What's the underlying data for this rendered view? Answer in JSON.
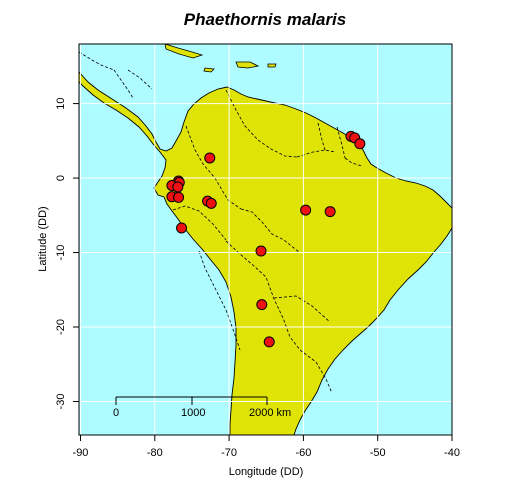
{
  "title": "Phaethornis malaris",
  "chart_data": {
    "type": "scatter",
    "title": "Phaethornis malaris",
    "xlabel": "Longitude (DD)",
    "ylabel": "Latitude (DD)",
    "xlim": [
      -90.2,
      -40
    ],
    "ylim": [
      -34.5,
      18
    ],
    "xticks": [
      -90,
      -80,
      -70,
      -60,
      -50,
      -40
    ],
    "yticks": [
      10,
      0,
      -10,
      -20,
      -30
    ],
    "background": {
      "ocean": "#aefcff",
      "land": "#dfe306",
      "point_fill": "#ee1111"
    },
    "grid": true,
    "scale_bar": {
      "labels": [
        "0",
        "1000",
        "2000 km"
      ]
    },
    "points": [
      {
        "x": -72.6,
        "y": 2.7
      },
      {
        "x": -53.6,
        "y": 5.6
      },
      {
        "x": -53.1,
        "y": 5.4
      },
      {
        "x": -52.4,
        "y": 4.6
      },
      {
        "x": -76.8,
        "y": -0.4
      },
      {
        "x": -76.7,
        "y": -0.6
      },
      {
        "x": -77.7,
        "y": -1.0
      },
      {
        "x": -76.9,
        "y": -1.2
      },
      {
        "x": -77.7,
        "y": -2.5
      },
      {
        "x": -76.8,
        "y": -2.6
      },
      {
        "x": -72.9,
        "y": -3.1
      },
      {
        "x": -72.4,
        "y": -3.4
      },
      {
        "x": -76.4,
        "y": -6.7
      },
      {
        "x": -59.7,
        "y": -4.3
      },
      {
        "x": -56.4,
        "y": -4.5
      },
      {
        "x": -65.7,
        "y": -9.8
      },
      {
        "x": -65.6,
        "y": -17.0
      },
      {
        "x": -64.6,
        "y": -22.0
      }
    ]
  }
}
